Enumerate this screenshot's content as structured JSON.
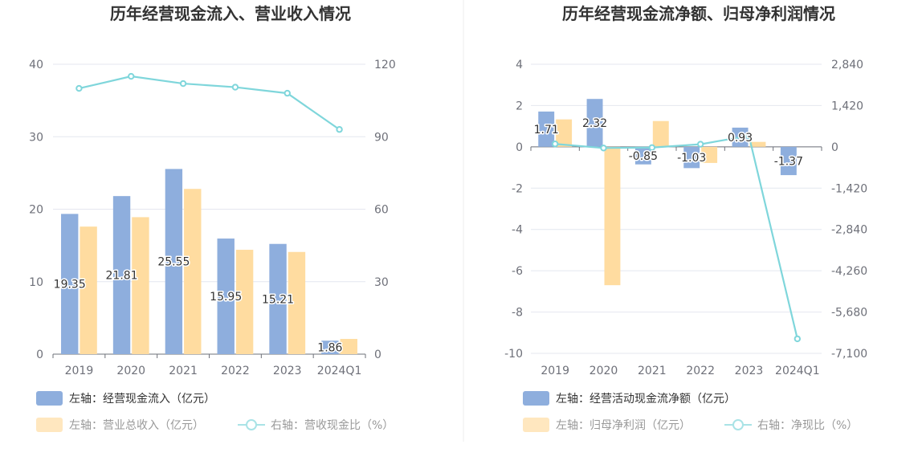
{
  "colors": {
    "bar_blue": "#8eaedd",
    "bar_yellow": "#ffdca0",
    "line": "#7fd6db",
    "grid": "#e4e7ef",
    "axis": "#6e7079",
    "legend_active": "#333333",
    "legend_muted": "#999999"
  },
  "chart_data": [
    {
      "type": "bar",
      "title": "历年经营现金流入、营业收入情况",
      "categories": [
        "2019",
        "2020",
        "2021",
        "2022",
        "2023",
        "2024Q1"
      ],
      "left_axis": {
        "min": 0,
        "max": 40,
        "ticks": [
          "0",
          "10",
          "20",
          "30",
          "40"
        ]
      },
      "right_axis": {
        "min": 0,
        "max": 120,
        "ticks": [
          "0",
          "30",
          "60",
          "90",
          "120"
        ]
      },
      "grid": true,
      "legend_position": "bottom-left",
      "series": [
        {
          "name": "左轴：经营现金流入（亿元）",
          "type": "bar",
          "axis": "left",
          "values": [
            19.35,
            21.81,
            25.55,
            15.95,
            15.21,
            1.86
          ],
          "labels": [
            "19.35",
            "21.81",
            "25.55",
            "15.95",
            "15.21",
            "1.86"
          ]
        },
        {
          "name": "左轴：营业总收入（亿元）",
          "type": "bar",
          "axis": "left",
          "values": [
            17.6,
            18.9,
            22.8,
            14.4,
            14.1,
            2.1
          ]
        },
        {
          "name": "右轴：营收现金比（%）",
          "type": "line",
          "axis": "right",
          "values": [
            110,
            115,
            112,
            110.5,
            108,
            93
          ]
        }
      ]
    },
    {
      "type": "bar",
      "title": "历年经营现金流净额、归母净利润情况",
      "categories": [
        "2019",
        "2020",
        "2021",
        "2022",
        "2023",
        "2024Q1"
      ],
      "left_axis": {
        "min": -10,
        "max": 4,
        "ticks": [
          "-10",
          "-8",
          "-6",
          "-4",
          "-2",
          "0",
          "2",
          "4"
        ]
      },
      "right_axis": {
        "min": -7100,
        "max": 2840,
        "ticks": [
          "-7,100",
          "-5,680",
          "-4,260",
          "-2,840",
          "-1,420",
          "0",
          "1,420",
          "2,840"
        ]
      },
      "grid": true,
      "legend_position": "bottom-left",
      "series": [
        {
          "name": "左轴：经营活动现金流净额（亿元）",
          "type": "bar",
          "axis": "left",
          "values": [
            1.71,
            2.32,
            -0.85,
            -1.03,
            0.93,
            -1.37
          ],
          "labels": [
            "1.71",
            "2.32",
            "-0.85",
            "-1.03",
            "0.93",
            "-1.37"
          ]
        },
        {
          "name": "左轴：归母净利润（亿元）",
          "type": "bar",
          "axis": "left",
          "values": [
            1.33,
            -6.7,
            1.25,
            -0.78,
            0.24,
            0
          ]
        },
        {
          "name": "右轴：净现比（%）",
          "type": "line",
          "axis": "right",
          "values": [
            100,
            -40,
            -25,
            90,
            380,
            -6600
          ]
        }
      ]
    }
  ]
}
